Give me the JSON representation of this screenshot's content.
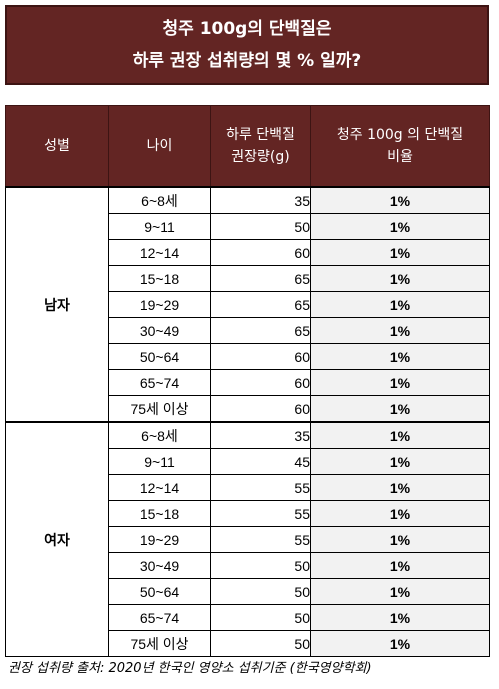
{
  "title": {
    "line1": "청주 100g의 단백질은",
    "line2": "하루 권장 섭취량의 몇 % 일까?"
  },
  "headers": {
    "gender": "성별",
    "age": "나이",
    "req_line1": "하루 단백질",
    "req_line2": "권장량(g)",
    "ratio_line1": "청주 100g 의 단백질",
    "ratio_line2": "비율"
  },
  "groups": [
    {
      "gender": "남자",
      "rows": [
        {
          "age": "6~8세",
          "req": "35",
          "pct": "1%"
        },
        {
          "age": "9~11",
          "req": "50",
          "pct": "1%"
        },
        {
          "age": "12~14",
          "req": "60",
          "pct": "1%"
        },
        {
          "age": "15~18",
          "req": "65",
          "pct": "1%"
        },
        {
          "age": "19~29",
          "req": "65",
          "pct": "1%"
        },
        {
          "age": "30~49",
          "req": "65",
          "pct": "1%"
        },
        {
          "age": "50~64",
          "req": "60",
          "pct": "1%"
        },
        {
          "age": "65~74",
          "req": "60",
          "pct": "1%"
        },
        {
          "age": "75세 이상",
          "req": "60",
          "pct": "1%"
        }
      ]
    },
    {
      "gender": "여자",
      "rows": [
        {
          "age": "6~8세",
          "req": "35",
          "pct": "1%"
        },
        {
          "age": "9~11",
          "req": "45",
          "pct": "1%"
        },
        {
          "age": "12~14",
          "req": "55",
          "pct": "1%"
        },
        {
          "age": "15~18",
          "req": "55",
          "pct": "1%"
        },
        {
          "age": "19~29",
          "req": "55",
          "pct": "1%"
        },
        {
          "age": "30~49",
          "req": "50",
          "pct": "1%"
        },
        {
          "age": "50~64",
          "req": "50",
          "pct": "1%"
        },
        {
          "age": "65~74",
          "req": "50",
          "pct": "1%"
        },
        {
          "age": "75세 이상",
          "req": "50",
          "pct": "1%"
        }
      ]
    }
  ],
  "source_note": "권장 섭취량 출처: 2020년 한국인 영양소 섭취기준 (한국영양학회)"
}
